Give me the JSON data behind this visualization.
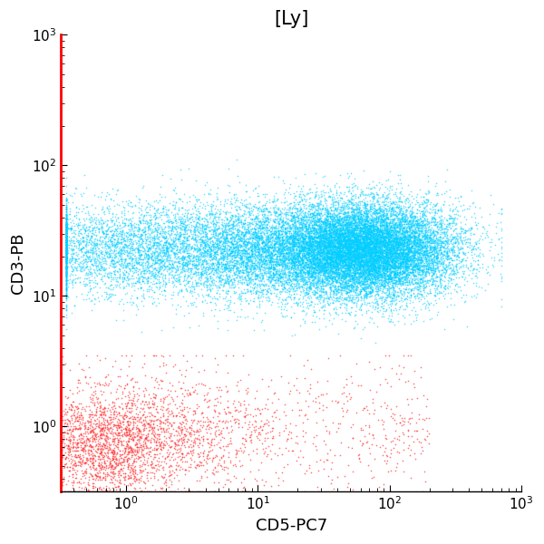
{
  "title": "[Ly]",
  "xlabel": "CD5-PC7",
  "ylabel": "CD3-PB",
  "xlim": [
    0.32,
    1000
  ],
  "ylim": [
    0.32,
    1000
  ],
  "cyan_n": 25000,
  "red_n": 3500,
  "cyan_color": "#00CFFF",
  "red_color": "#FF3333",
  "marker_size": 1.5,
  "alpha_cyan": 0.55,
  "alpha_red": 0.65,
  "title_fontsize": 15,
  "label_fontsize": 13,
  "tick_fontsize": 11,
  "background_color": "#ffffff"
}
